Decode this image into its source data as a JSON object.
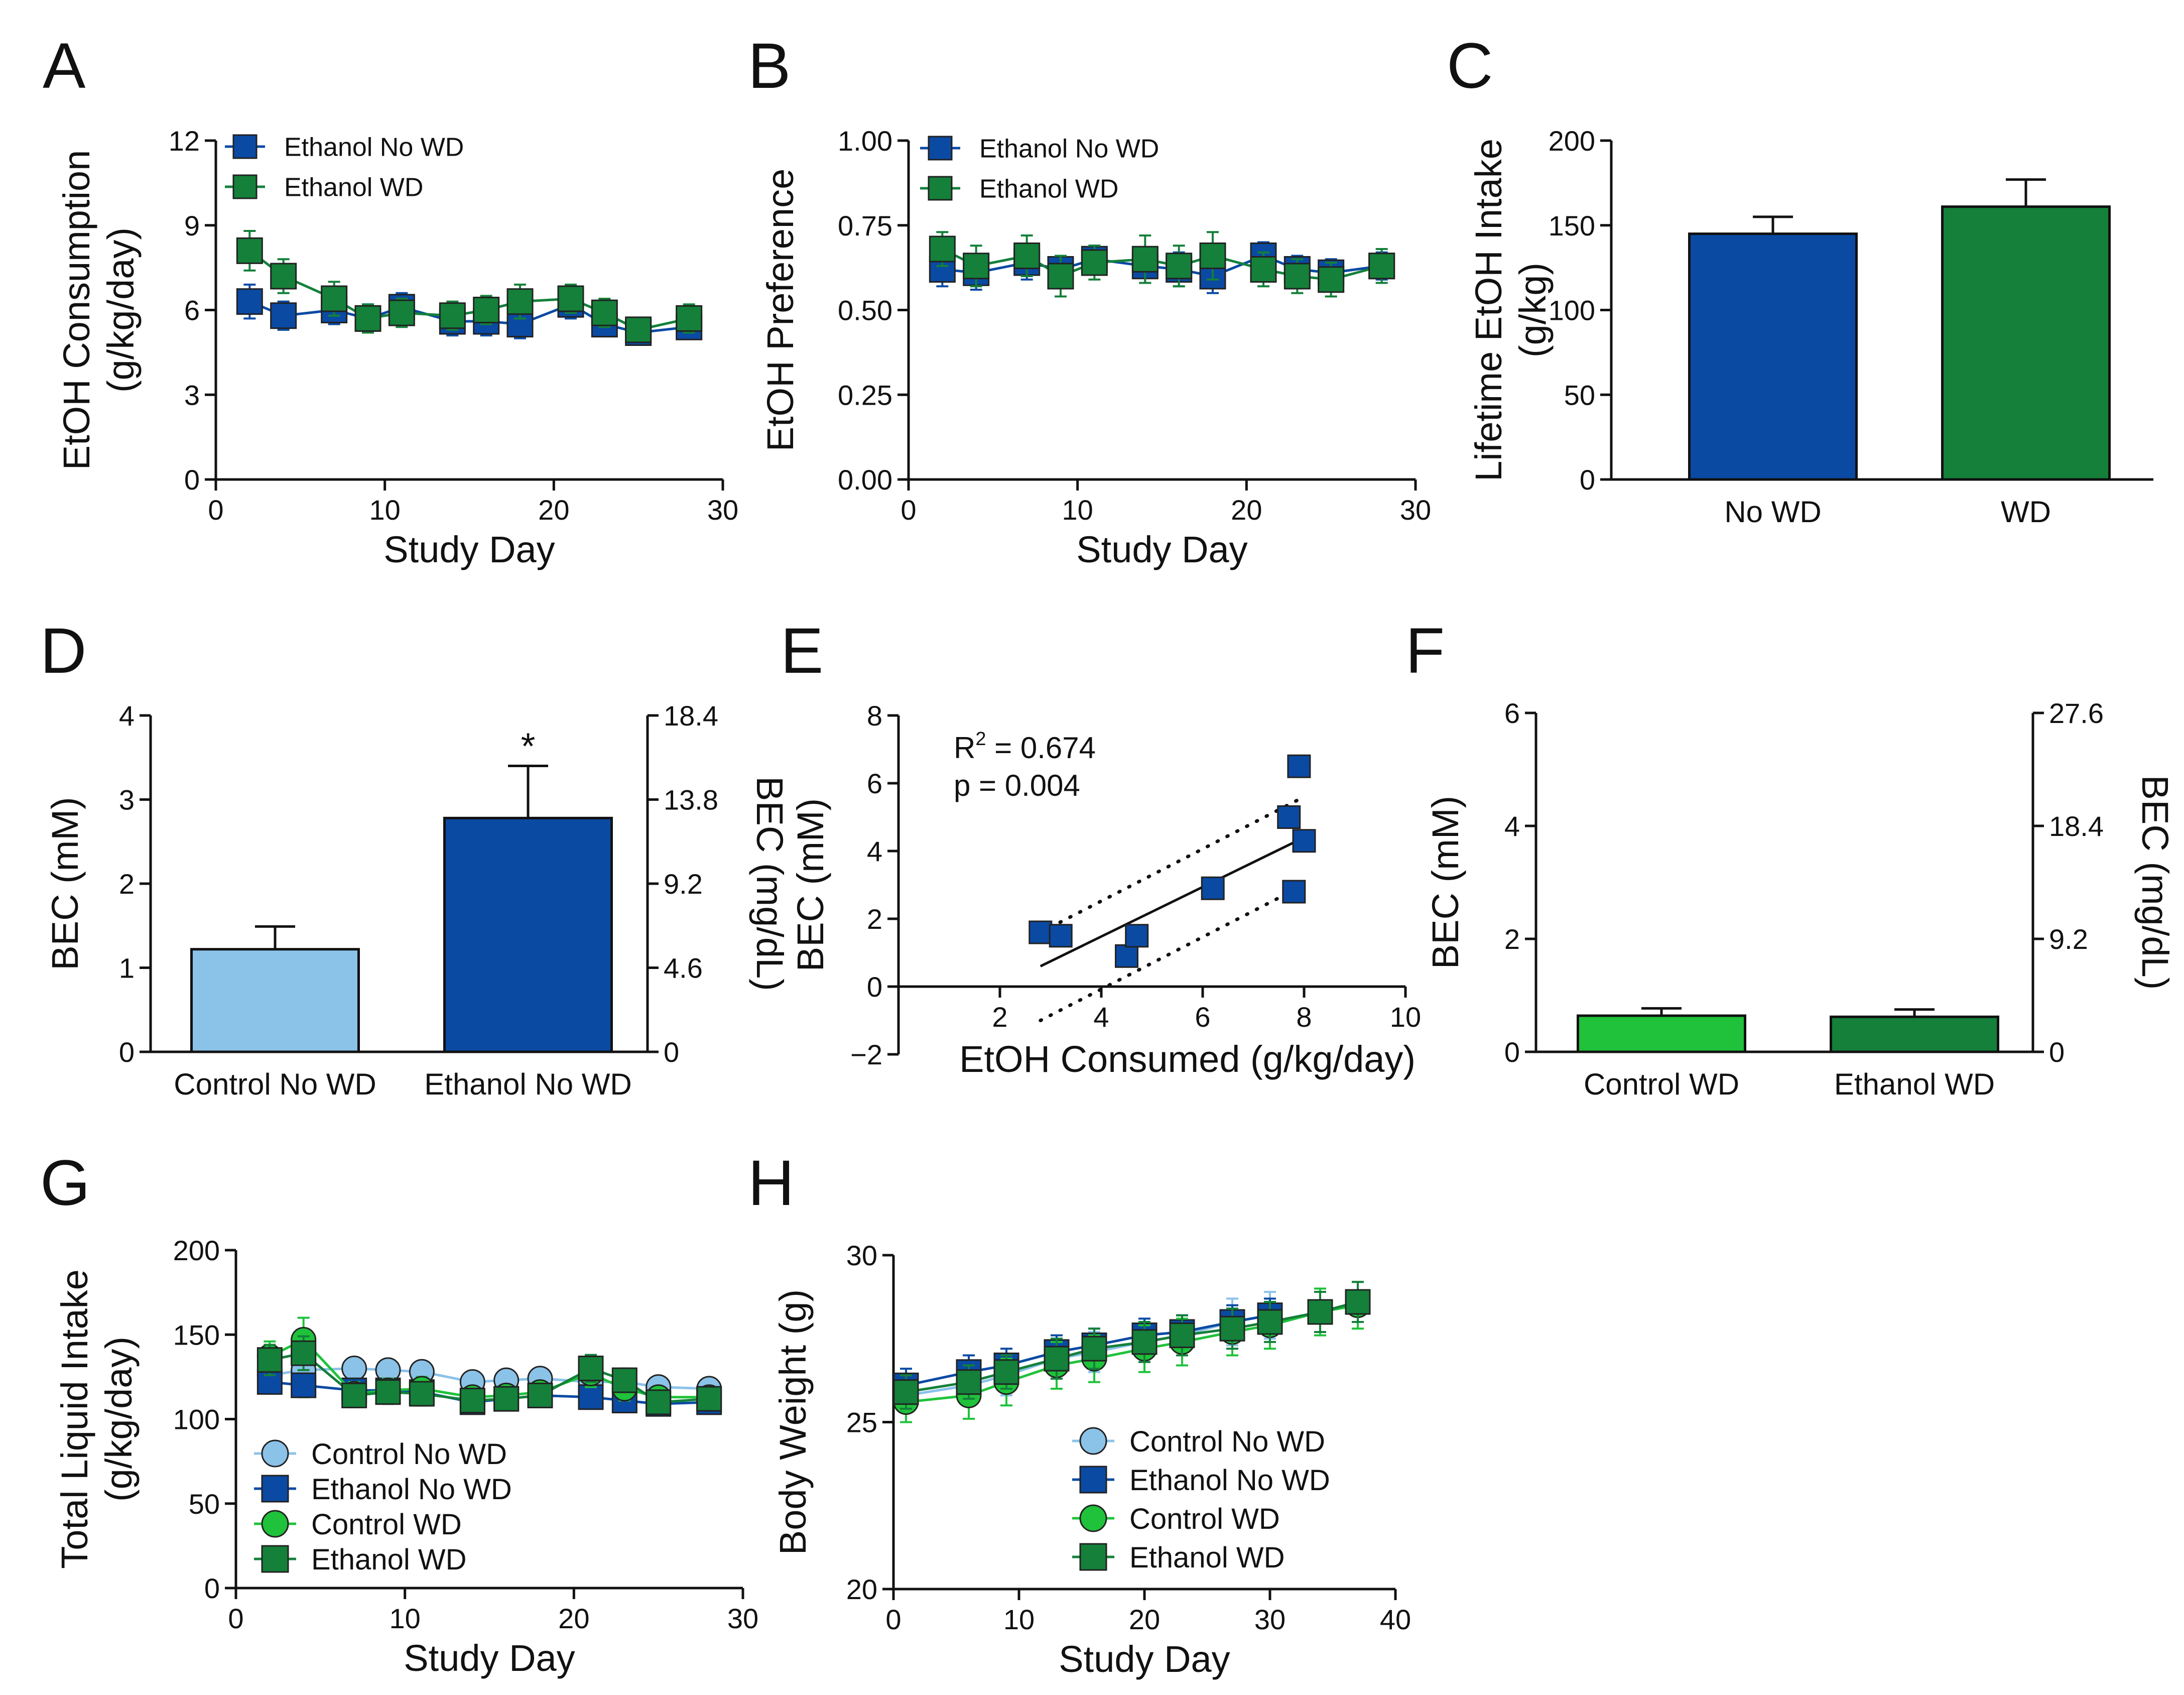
{
  "colors": {
    "control_no_wd": "#8bc2e8",
    "ethanol_no_wd": "#0a4aa3",
    "control_wd": "#1fc23a",
    "ethanol_wd": "#14803a",
    "axis": "#111111"
  },
  "chart_data": [
    {
      "id": "A",
      "panel_label": "A",
      "type": "line",
      "title": "",
      "xlabel": "Study Day",
      "ylabel": [
        "EtOH Consumption",
        "(g/kg/day)"
      ],
      "xlim": [
        0,
        30
      ],
      "ylim": [
        0,
        12
      ],
      "xticks": [
        0,
        10,
        20,
        30
      ],
      "xtick_labels": [
        "0",
        "10",
        "20",
        "30"
      ],
      "yticks": [
        0,
        3,
        6,
        9,
        12
      ],
      "ytick_labels": [
        "0",
        "3",
        "6",
        "9",
        "12"
      ],
      "legend": "top-left",
      "series": [
        {
          "name": "Ethanol No WD",
          "marker": "square",
          "color_key": "ethanol_no_wd",
          "x": [
            2,
            4,
            7,
            9,
            11,
            14,
            16,
            18,
            21,
            23,
            25,
            28
          ],
          "y": [
            6.3,
            5.8,
            6.0,
            5.7,
            6.1,
            5.6,
            5.6,
            5.5,
            6.2,
            5.5,
            5.2,
            5.4
          ],
          "err": [
            0.6,
            0.5,
            0.5,
            0.5,
            0.5,
            0.5,
            0.5,
            0.5,
            0.5,
            0.4,
            0.4,
            0.4
          ]
        },
        {
          "name": "Ethanol WD",
          "marker": "square",
          "color_key": "ethanol_wd",
          "x": [
            2,
            4,
            7,
            9,
            11,
            14,
            16,
            18,
            21,
            23,
            25,
            28
          ],
          "y": [
            8.1,
            7.2,
            6.4,
            5.7,
            5.9,
            5.8,
            6.0,
            6.3,
            6.4,
            5.9,
            5.3,
            5.7
          ],
          "err": [
            0.7,
            0.6,
            0.6,
            0.5,
            0.5,
            0.5,
            0.5,
            0.6,
            0.5,
            0.5,
            0.4,
            0.5
          ]
        }
      ]
    },
    {
      "id": "B",
      "panel_label": "B",
      "type": "line",
      "title": "",
      "xlabel": "Study Day",
      "ylabel": [
        "EtOH Preference"
      ],
      "xlim": [
        0,
        30
      ],
      "ylim": [
        0,
        1
      ],
      "xticks": [
        0,
        10,
        20,
        30
      ],
      "xtick_labels": [
        "0",
        "10",
        "20",
        "30"
      ],
      "yticks": [
        0,
        0.25,
        0.5,
        0.75,
        1.0
      ],
      "ytick_labels": [
        "0.00",
        "0.25",
        "0.50",
        "0.75",
        "1.00"
      ],
      "legend": "top-left",
      "series": [
        {
          "name": "Ethanol No WD",
          "marker": "square",
          "color_key": "ethanol_no_wd",
          "x": [
            2,
            4,
            7,
            9,
            11,
            14,
            16,
            18,
            21,
            23,
            25,
            28
          ],
          "y": [
            0.62,
            0.61,
            0.64,
            0.62,
            0.65,
            0.63,
            0.62,
            0.6,
            0.66,
            0.62,
            0.61,
            0.63
          ],
          "err": [
            0.05,
            0.05,
            0.05,
            0.04,
            0.04,
            0.05,
            0.05,
            0.05,
            0.04,
            0.04,
            0.04,
            0.04
          ]
        },
        {
          "name": "Ethanol WD",
          "marker": "square",
          "color_key": "ethanol_wd",
          "x": [
            2,
            4,
            7,
            9,
            11,
            14,
            16,
            18,
            21,
            23,
            25,
            28
          ],
          "y": [
            0.68,
            0.63,
            0.66,
            0.6,
            0.64,
            0.65,
            0.63,
            0.66,
            0.62,
            0.6,
            0.59,
            0.63
          ],
          "err": [
            0.05,
            0.06,
            0.06,
            0.06,
            0.05,
            0.07,
            0.06,
            0.07,
            0.05,
            0.05,
            0.05,
            0.05
          ]
        }
      ]
    },
    {
      "id": "C",
      "panel_label": "C",
      "type": "bar",
      "title": "",
      "xlabel": "",
      "ylabel": [
        "Lifetime EtOH Intake",
        "(g/kg)"
      ],
      "ylim": [
        0,
        200
      ],
      "yticks": [
        0,
        50,
        100,
        150,
        200
      ],
      "ytick_labels": [
        "0",
        "50",
        "100",
        "150",
        "200"
      ],
      "categories": [
        "No WD",
        "WD"
      ],
      "values": [
        145,
        161
      ],
      "err": [
        10,
        16
      ],
      "bar_color_keys": [
        "ethanol_no_wd",
        "ethanol_wd"
      ]
    },
    {
      "id": "D",
      "panel_label": "D",
      "type": "bar",
      "title": "",
      "xlabel": "",
      "ylabel": [
        "BEC (mM)"
      ],
      "ylabel_right": "BEC (mg/dL)",
      "ylim": [
        0,
        4
      ],
      "yticks": [
        0,
        1,
        2,
        3,
        4
      ],
      "ytick_labels": [
        "0",
        "1",
        "2",
        "3",
        "4"
      ],
      "yticks_right": [
        0,
        1,
        2,
        3,
        4
      ],
      "ytick_labels_right": [
        "0",
        "4.6",
        "9.2",
        "13.8",
        "18.4"
      ],
      "categories": [
        "Control No WD",
        "Ethanol No WD"
      ],
      "values": [
        1.22,
        2.78
      ],
      "err": [
        0.27,
        0.62
      ],
      "bar_color_keys": [
        "control_no_wd",
        "ethanol_no_wd"
      ],
      "significance": [
        "",
        "*"
      ]
    },
    {
      "id": "E",
      "panel_label": "E",
      "type": "scatter",
      "title": "",
      "xlabel": "EtOH Consumed (g/kg/day)",
      "ylabel": [
        "BEC (mM)"
      ],
      "xlim": [
        0,
        10
      ],
      "ylim": [
        -2,
        8
      ],
      "xticks": [
        2,
        4,
        6,
        8,
        10
      ],
      "xtick_labels": [
        "2",
        "4",
        "6",
        "8",
        "10"
      ],
      "yticks": [
        -2,
        0,
        2,
        4,
        6,
        8
      ],
      "ytick_labels": [
        "−2",
        "0",
        "2",
        "4",
        "6",
        "8"
      ],
      "x": [
        2.8,
        3.2,
        4.5,
        4.7,
        6.2,
        7.7,
        7.8,
        8.0,
        7.9
      ],
      "y": [
        1.6,
        1.5,
        0.9,
        1.5,
        2.9,
        5.0,
        2.8,
        4.3,
        6.5
      ],
      "fit": {
        "x": [
          2.8,
          8.0
        ],
        "y": [
          0.6,
          4.4
        ]
      },
      "ci_upper": {
        "x": [
          2.8,
          8.0
        ],
        "y": [
          1.6,
          5.6
        ]
      },
      "ci_lower": {
        "x": [
          2.8,
          8.0
        ],
        "y": [
          -1.0,
          3.0
        ]
      },
      "annotation": {
        "r2_label": "R",
        "r2_sup": "2",
        "r2_value": " = 0.674",
        "p_text": "p = 0.004"
      },
      "color_key": "ethanol_no_wd"
    },
    {
      "id": "F",
      "panel_label": "F",
      "type": "bar",
      "title": "",
      "xlabel": "",
      "ylabel": [
        "BEC (mM)"
      ],
      "ylabel_right": "BEC (mg/dL)",
      "ylim": [
        0,
        6
      ],
      "yticks": [
        0,
        2,
        4,
        6
      ],
      "ytick_labels": [
        "0",
        "2",
        "4",
        "6"
      ],
      "yticks_right": [
        0,
        2,
        4,
        6
      ],
      "ytick_labels_right": [
        "0",
        "9.2",
        "18.4",
        "27.6"
      ],
      "categories": [
        "Control WD",
        "Ethanol WD"
      ],
      "values": [
        0.64,
        0.62
      ],
      "err": [
        0.13,
        0.13
      ],
      "bar_color_keys": [
        "control_wd",
        "ethanol_wd"
      ]
    },
    {
      "id": "G",
      "panel_label": "G",
      "type": "line",
      "title": "",
      "xlabel": "Study Day",
      "ylabel": [
        "Total Liquid Intake",
        "(g/kg/day)"
      ],
      "xlim": [
        0,
        30
      ],
      "ylim": [
        0,
        200
      ],
      "xticks": [
        0,
        10,
        20,
        30
      ],
      "xtick_labels": [
        "0",
        "10",
        "20",
        "30"
      ],
      "yticks": [
        0,
        50,
        100,
        150,
        200
      ],
      "ytick_labels": [
        "0",
        "50",
        "100",
        "150",
        "200"
      ],
      "legend": "bottom-left",
      "series": [
        {
          "name": "Control No WD",
          "marker": "circle",
          "color_key": "control_no_wd",
          "x": [
            2,
            4,
            7,
            9,
            11,
            14,
            16,
            18,
            21,
            23,
            25,
            28
          ],
          "y": [
            126,
            129,
            130,
            129,
            128,
            122,
            123,
            124,
            122,
            122,
            119,
            118
          ],
          "err": [
            8,
            8,
            6,
            6,
            6,
            5,
            5,
            5,
            5,
            5,
            5,
            5
          ]
        },
        {
          "name": "Ethanol No WD",
          "marker": "square",
          "color_key": "ethanol_no_wd",
          "x": [
            2,
            4,
            7,
            9,
            11,
            14,
            16,
            18,
            21,
            23,
            25,
            28
          ],
          "y": [
            122,
            120,
            117,
            117,
            116,
            110,
            112,
            114,
            113,
            111,
            109,
            110
          ],
          "err": [
            7,
            7,
            6,
            6,
            6,
            6,
            6,
            6,
            6,
            6,
            6,
            6
          ]
        },
        {
          "name": "Control WD",
          "marker": "circle",
          "color_key": "control_wd",
          "x": [
            2,
            4,
            7,
            9,
            11,
            14,
            16,
            18,
            21,
            23,
            25,
            28
          ],
          "y": [
            137,
            147,
            115,
            117,
            118,
            113,
            114,
            116,
            127,
            118,
            113,
            113
          ],
          "err": [
            9,
            13,
            7,
            7,
            7,
            6,
            6,
            6,
            8,
            7,
            6,
            6
          ]
        },
        {
          "name": "Ethanol WD",
          "marker": "square",
          "color_key": "ethanol_wd",
          "x": [
            2,
            4,
            7,
            9,
            11,
            14,
            16,
            18,
            21,
            23,
            25,
            28
          ],
          "y": [
            135,
            139,
            114,
            116,
            115,
            111,
            112,
            114,
            130,
            123,
            110,
            112
          ],
          "err": [
            9,
            10,
            7,
            7,
            7,
            6,
            6,
            6,
            8,
            7,
            6,
            6
          ]
        }
      ]
    },
    {
      "id": "H",
      "panel_label": "H",
      "type": "line",
      "title": "",
      "xlabel": "Study Day",
      "ylabel": [
        "Body Weight (g)"
      ],
      "xlim": [
        0,
        40
      ],
      "ylim": [
        20,
        30
      ],
      "xticks": [
        0,
        10,
        20,
        30,
        40
      ],
      "xtick_labels": [
        "0",
        "10",
        "20",
        "30",
        "40"
      ],
      "yticks": [
        20,
        25,
        30
      ],
      "ytick_labels": [
        "20",
        "25",
        "30"
      ],
      "legend": "bottom-right",
      "series": [
        {
          "name": "Control No WD",
          "marker": "circle",
          "color_key": "control_no_wd",
          "x": [
            1,
            6,
            9,
            13,
            16,
            20,
            23,
            27,
            30
          ],
          "y": [
            25.8,
            26.1,
            26.4,
            26.9,
            27.1,
            27.4,
            27.6,
            28.0,
            28.2
          ],
          "err": [
            0.5,
            0.6,
            0.6,
            0.6,
            0.6,
            0.6,
            0.6,
            0.7,
            0.7
          ]
        },
        {
          "name": "Ethanol No WD",
          "marker": "square",
          "color_key": "ethanol_no_wd",
          "x": [
            1,
            6,
            9,
            13,
            16,
            20,
            23,
            27,
            30
          ],
          "y": [
            26.1,
            26.5,
            26.7,
            27.1,
            27.3,
            27.6,
            27.7,
            28.0,
            28.2
          ],
          "err": [
            0.5,
            0.5,
            0.5,
            0.5,
            0.5,
            0.5,
            0.5,
            0.5,
            0.5
          ]
        },
        {
          "name": "Control WD",
          "marker": "circle",
          "color_key": "control_wd",
          "x": [
            1,
            6,
            9,
            13,
            16,
            20,
            23,
            27,
            30,
            34,
            37
          ],
          "y": [
            25.6,
            25.8,
            26.2,
            26.7,
            26.9,
            27.2,
            27.4,
            27.7,
            27.9,
            28.3,
            28.5
          ],
          "err": [
            0.6,
            0.7,
            0.7,
            0.7,
            0.7,
            0.7,
            0.7,
            0.7,
            0.7,
            0.7,
            0.7
          ]
        },
        {
          "name": "Ethanol WD",
          "marker": "square",
          "color_key": "ethanol_wd",
          "x": [
            1,
            6,
            9,
            13,
            16,
            20,
            23,
            27,
            30,
            34,
            37
          ],
          "y": [
            25.9,
            26.2,
            26.5,
            26.9,
            27.2,
            27.4,
            27.6,
            27.8,
            28.0,
            28.3,
            28.6
          ],
          "err": [
            0.5,
            0.5,
            0.5,
            0.6,
            0.6,
            0.6,
            0.6,
            0.6,
            0.6,
            0.6,
            0.6
          ]
        }
      ]
    }
  ]
}
